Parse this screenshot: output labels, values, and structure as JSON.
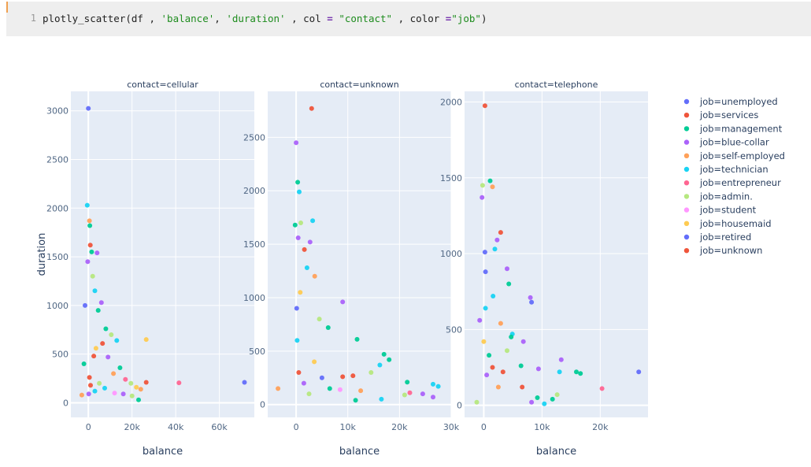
{
  "code_cell": {
    "line_number": "1",
    "tokens": [
      {
        "text": "plotly_scatter(df , ",
        "kind": "plain"
      },
      {
        "text": "'balance'",
        "kind": "str"
      },
      {
        "text": ", ",
        "kind": "plain"
      },
      {
        "text": "'duration'",
        "kind": "str"
      },
      {
        "text": " , col ",
        "kind": "plain"
      },
      {
        "text": "=",
        "kind": "op"
      },
      {
        "text": " ",
        "kind": "plain"
      },
      {
        "text": "\"contact\"",
        "kind": "str"
      },
      {
        "text": " , color ",
        "kind": "plain"
      },
      {
        "text": "=",
        "kind": "op"
      },
      {
        "text": "\"job\"",
        "kind": "str"
      },
      {
        "text": ")",
        "kind": "plain"
      }
    ]
  },
  "chart_data": {
    "type": "scatter",
    "ylabel": "duration",
    "xlabel": "balance",
    "plot_bgcolor": "#e5ecf6",
    "grid": true,
    "legend_placement": "right",
    "legend": [
      {
        "name": "job=unemployed",
        "color": "#636efa"
      },
      {
        "name": "job=services",
        "color": "#ef553b"
      },
      {
        "name": "job=management",
        "color": "#00cc96"
      },
      {
        "name": "job=blue-collar",
        "color": "#ab63fa"
      },
      {
        "name": "job=self-employed",
        "color": "#ffa15a"
      },
      {
        "name": "job=technician",
        "color": "#19d3f3"
      },
      {
        "name": "job=entrepreneur",
        "color": "#ff6692"
      },
      {
        "name": "job=admin.",
        "color": "#b6e880"
      },
      {
        "name": "job=student",
        "color": "#ff97ff"
      },
      {
        "name": "job=housemaid",
        "color": "#fecb52"
      },
      {
        "name": "job=retired",
        "color": "#636efa"
      },
      {
        "name": "job=unknown",
        "color": "#ef553b"
      }
    ],
    "facets": [
      {
        "title": "contact=cellular",
        "xlim": [
          -8000,
          76000
        ],
        "ylim": [
          -150,
          3200
        ],
        "xticks": [
          0,
          20000,
          40000,
          60000
        ],
        "xtick_labels": [
          "0",
          "20k",
          "40k",
          "60k"
        ],
        "yticks": [
          0,
          500,
          1000,
          1500,
          2000,
          2500,
          3000
        ],
        "ytick_labels": [
          "0",
          "500",
          "1000",
          "1500",
          "2000",
          "2500",
          "3000"
        ],
        "points": [
          {
            "x": 0,
            "y": 3025,
            "job": "job=unemployed"
          },
          {
            "x": -500,
            "y": 2030,
            "job": "job=technician"
          },
          {
            "x": 500,
            "y": 1870,
            "job": "job=self-employed"
          },
          {
            "x": 700,
            "y": 1820,
            "job": "job=management"
          },
          {
            "x": 900,
            "y": 1620,
            "job": "job=services"
          },
          {
            "x": 1500,
            "y": 1550,
            "job": "job=management"
          },
          {
            "x": 4000,
            "y": 1540,
            "job": "job=blue-collar"
          },
          {
            "x": -300,
            "y": 1450,
            "job": "job=blue-collar"
          },
          {
            "x": 2000,
            "y": 1300,
            "job": "job=admin."
          },
          {
            "x": 3000,
            "y": 1150,
            "job": "job=technician"
          },
          {
            "x": 6000,
            "y": 1030,
            "job": "job=blue-collar"
          },
          {
            "x": -1500,
            "y": 1000,
            "job": "job=unemployed"
          },
          {
            "x": 4500,
            "y": 950,
            "job": "job=management"
          },
          {
            "x": 8000,
            "y": 760,
            "job": "job=management"
          },
          {
            "x": 10500,
            "y": 700,
            "job": "job=admin."
          },
          {
            "x": 13000,
            "y": 640,
            "job": "job=technician"
          },
          {
            "x": 6500,
            "y": 610,
            "job": "job=services"
          },
          {
            "x": 3500,
            "y": 560,
            "job": "job=housemaid"
          },
          {
            "x": 2500,
            "y": 480,
            "job": "job=services"
          },
          {
            "x": 9000,
            "y": 470,
            "job": "job=blue-collar"
          },
          {
            "x": 14500,
            "y": 360,
            "job": "job=management"
          },
          {
            "x": 11500,
            "y": 300,
            "job": "job=self-employed"
          },
          {
            "x": 17000,
            "y": 240,
            "job": "job=entrepreneur"
          },
          {
            "x": 19500,
            "y": 200,
            "job": "job=admin."
          },
          {
            "x": 22000,
            "y": 160,
            "job": "job=housemaid"
          },
          {
            "x": 24000,
            "y": 140,
            "job": "job=self-employed"
          },
          {
            "x": 26500,
            "y": 650,
            "job": "job=housemaid"
          },
          {
            "x": 26500,
            "y": 210,
            "job": "job=services"
          },
          {
            "x": 23000,
            "y": 30,
            "job": "job=management"
          },
          {
            "x": 20000,
            "y": 70,
            "job": "job=admin."
          },
          {
            "x": 16000,
            "y": 90,
            "job": "job=blue-collar"
          },
          {
            "x": 41500,
            "y": 205,
            "job": "job=entrepreneur"
          },
          {
            "x": 71500,
            "y": 210,
            "job": "job=unemployed"
          },
          {
            "x": 500,
            "y": 260,
            "job": "job=services"
          },
          {
            "x": 1000,
            "y": 180,
            "job": "job=unknown"
          },
          {
            "x": 200,
            "y": 90,
            "job": "job=blue-collar"
          },
          {
            "x": 3000,
            "y": 120,
            "job": "job=technician"
          },
          {
            "x": 5000,
            "y": 200,
            "job": "job=admin."
          },
          {
            "x": 7500,
            "y": 150,
            "job": "job=technician"
          },
          {
            "x": -3000,
            "y": 80,
            "job": "job=self-employed"
          },
          {
            "x": -2000,
            "y": 400,
            "job": "job=management"
          },
          {
            "x": 12000,
            "y": 100,
            "job": "job=student"
          }
        ]
      },
      {
        "title": "contact=unknown",
        "xlim": [
          -5500,
          30000
        ],
        "ylim": [
          -120,
          2930
        ],
        "xticks": [
          0,
          10000,
          20000,
          30000
        ],
        "xtick_labels": [
          "0",
          "10k",
          "20k",
          "30k"
        ],
        "yticks": [
          0,
          500,
          1000,
          1500,
          2000,
          2500
        ],
        "ytick_labels": [
          "0",
          "500",
          "1000",
          "1500",
          "2000",
          "2500"
        ],
        "points": [
          {
            "x": 3000,
            "y": 2770,
            "job": "job=services"
          },
          {
            "x": 0,
            "y": 2450,
            "job": "job=blue-collar"
          },
          {
            "x": 300,
            "y": 2080,
            "job": "job=management"
          },
          {
            "x": 600,
            "y": 1990,
            "job": "job=technician"
          },
          {
            "x": 900,
            "y": 1700,
            "job": "job=admin."
          },
          {
            "x": 3200,
            "y": 1720,
            "job": "job=technician"
          },
          {
            "x": -200,
            "y": 1680,
            "job": "job=management"
          },
          {
            "x": 400,
            "y": 1560,
            "job": "job=blue-collar"
          },
          {
            "x": 2700,
            "y": 1520,
            "job": "job=blue-collar"
          },
          {
            "x": 1600,
            "y": 1450,
            "job": "job=services"
          },
          {
            "x": 2100,
            "y": 1280,
            "job": "job=technician"
          },
          {
            "x": 3600,
            "y": 1200,
            "job": "job=self-employed"
          },
          {
            "x": 9000,
            "y": 960,
            "job": "job=blue-collar"
          },
          {
            "x": 4500,
            "y": 800,
            "job": "job=admin."
          },
          {
            "x": 6200,
            "y": 720,
            "job": "job=management"
          },
          {
            "x": 11800,
            "y": 610,
            "job": "job=management"
          },
          {
            "x": 17000,
            "y": 470,
            "job": "job=management"
          },
          {
            "x": 18000,
            "y": 420,
            "job": "job=management"
          },
          {
            "x": 16200,
            "y": 370,
            "job": "job=technician"
          },
          {
            "x": 14500,
            "y": 300,
            "job": "job=admin."
          },
          {
            "x": 9000,
            "y": 260,
            "job": "job=services"
          },
          {
            "x": 11000,
            "y": 270,
            "job": "job=unknown"
          },
          {
            "x": 21500,
            "y": 210,
            "job": "job=management"
          },
          {
            "x": 26500,
            "y": 190,
            "job": "job=technician"
          },
          {
            "x": 27500,
            "y": 170,
            "job": "job=technician"
          },
          {
            "x": 24500,
            "y": 100,
            "job": "job=blue-collar"
          },
          {
            "x": 26500,
            "y": 70,
            "job": "job=blue-collar"
          },
          {
            "x": 22000,
            "y": 110,
            "job": "job=entrepreneur"
          },
          {
            "x": 21000,
            "y": 90,
            "job": "job=admin."
          },
          {
            "x": 16500,
            "y": 50,
            "job": "job=technician"
          },
          {
            "x": 12500,
            "y": 130,
            "job": "job=self-employed"
          },
          {
            "x": 11500,
            "y": 40,
            "job": "job=management"
          },
          {
            "x": 8500,
            "y": 140,
            "job": "job=student"
          },
          {
            "x": -3500,
            "y": 150,
            "job": "job=self-employed"
          },
          {
            "x": 500,
            "y": 300,
            "job": "job=services"
          },
          {
            "x": 1500,
            "y": 200,
            "job": "job=blue-collar"
          },
          {
            "x": 2500,
            "y": 100,
            "job": "job=admin."
          },
          {
            "x": 3500,
            "y": 400,
            "job": "job=housemaid"
          },
          {
            "x": 5000,
            "y": 250,
            "job": "job=unemployed"
          },
          {
            "x": 6500,
            "y": 150,
            "job": "job=management"
          },
          {
            "x": 200,
            "y": 600,
            "job": "job=technician"
          },
          {
            "x": 100,
            "y": 900,
            "job": "job=unemployed"
          },
          {
            "x": 800,
            "y": 1050,
            "job": "job=housemaid"
          }
        ]
      },
      {
        "title": "contact=telephone",
        "xlim": [
          -3300,
          28200
        ],
        "ylim": [
          -80,
          2070
        ],
        "xticks": [
          0,
          10000,
          20000
        ],
        "xtick_labels": [
          "0",
          "10k",
          "20k"
        ],
        "yticks": [
          0,
          500,
          1000,
          1500,
          2000
        ],
        "ytick_labels": [
          "0",
          "500",
          "1000",
          "1500",
          "2000"
        ],
        "points": [
          {
            "x": 200,
            "y": 1975,
            "job": "job=services"
          },
          {
            "x": -200,
            "y": 1450,
            "job": "job=admin."
          },
          {
            "x": 1100,
            "y": 1480,
            "job": "job=management"
          },
          {
            "x": 1500,
            "y": 1440,
            "job": "job=self-employed"
          },
          {
            "x": -300,
            "y": 1370,
            "job": "job=blue-collar"
          },
          {
            "x": 2900,
            "y": 1140,
            "job": "job=services"
          },
          {
            "x": 2300,
            "y": 1090,
            "job": "job=blue-collar"
          },
          {
            "x": 1900,
            "y": 1030,
            "job": "job=technician"
          },
          {
            "x": 200,
            "y": 1010,
            "job": "job=unemployed"
          },
          {
            "x": 4000,
            "y": 900,
            "job": "job=blue-collar"
          },
          {
            "x": 300,
            "y": 880,
            "job": "job=unemployed"
          },
          {
            "x": 4300,
            "y": 800,
            "job": "job=management"
          },
          {
            "x": 1600,
            "y": 720,
            "job": "job=technician"
          },
          {
            "x": 8000,
            "y": 710,
            "job": "job=blue-collar"
          },
          {
            "x": 8200,
            "y": 680,
            "job": "job=unemployed"
          },
          {
            "x": 300,
            "y": 640,
            "job": "job=technician"
          },
          {
            "x": 2900,
            "y": 540,
            "job": "job=self-employed"
          },
          {
            "x": -700,
            "y": 560,
            "job": "job=blue-collar"
          },
          {
            "x": 4900,
            "y": 470,
            "job": "job=technician"
          },
          {
            "x": 4700,
            "y": 450,
            "job": "job=management"
          },
          {
            "x": 6800,
            "y": 420,
            "job": "job=blue-collar"
          },
          {
            "x": 4000,
            "y": 360,
            "job": "job=admin."
          },
          {
            "x": 6400,
            "y": 260,
            "job": "job=management"
          },
          {
            "x": 9400,
            "y": 240,
            "job": "job=blue-collar"
          },
          {
            "x": 13300,
            "y": 300,
            "job": "job=blue-collar"
          },
          {
            "x": 13000,
            "y": 220,
            "job": "job=technician"
          },
          {
            "x": 15900,
            "y": 220,
            "job": "job=management"
          },
          {
            "x": 16600,
            "y": 210,
            "job": "job=management"
          },
          {
            "x": 26600,
            "y": 220,
            "job": "job=unemployed"
          },
          {
            "x": 20300,
            "y": 110,
            "job": "job=entrepreneur"
          },
          {
            "x": 12600,
            "y": 70,
            "job": "job=admin."
          },
          {
            "x": 11800,
            "y": 40,
            "job": "job=management"
          },
          {
            "x": 9200,
            "y": 50,
            "job": "job=management"
          },
          {
            "x": 10400,
            "y": 10,
            "job": "job=technician"
          },
          {
            "x": 8200,
            "y": 20,
            "job": "job=blue-collar"
          },
          {
            "x": 6600,
            "y": 120,
            "job": "job=services"
          },
          {
            "x": -1200,
            "y": 20,
            "job": "job=admin."
          },
          {
            "x": 500,
            "y": 200,
            "job": "job=blue-collar"
          },
          {
            "x": 1500,
            "y": 250,
            "job": "job=services"
          },
          {
            "x": 2500,
            "y": 120,
            "job": "job=self-employed"
          },
          {
            "x": 0,
            "y": 420,
            "job": "job=housemaid"
          },
          {
            "x": 900,
            "y": 330,
            "job": "job=management"
          },
          {
            "x": 3300,
            "y": 220,
            "job": "job=unknown"
          }
        ]
      }
    ]
  }
}
